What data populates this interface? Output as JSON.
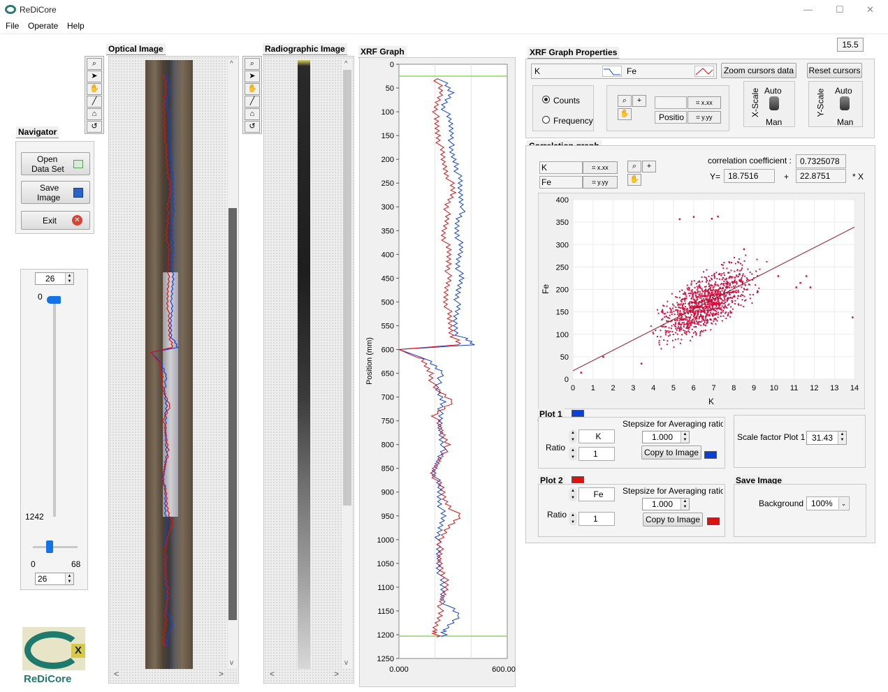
{
  "window": {
    "title": "ReDiCore",
    "minimize": "—",
    "maximize": "☐",
    "close": "✕"
  },
  "menu": [
    "File",
    "Operate",
    "Help"
  ],
  "version": "15.5",
  "navigator": {
    "label": "Navigator",
    "open_label_1": "Open",
    "open_label_2": "Data Set",
    "save_label_1": "Save",
    "save_label_2": "Image",
    "exit_label": "Exit"
  },
  "slider": {
    "top_value": "26",
    "min": "0",
    "max": "1242",
    "h_min": "0",
    "h_max": "68",
    "bottom_value": "26"
  },
  "optical": {
    "label": "Optical Image",
    "scroll_left": "<",
    "scroll_right": ">",
    "scroll_up": "^",
    "scroll_down": "v"
  },
  "radiographic": {
    "label": "Radiographic Image",
    "scroll_left": "<",
    "scroll_right": ">",
    "scroll_up": "^",
    "scroll_down": "v"
  },
  "xrf": {
    "label": "XRF Graph",
    "ylabel": "Position (mm)",
    "yticks": [
      "0",
      "50",
      "100",
      "150",
      "200",
      "250",
      "300",
      "350",
      "400",
      "450",
      "500",
      "550",
      "600",
      "650",
      "700",
      "750",
      "800",
      "850",
      "900",
      "950",
      "1000",
      "1050",
      "1100",
      "1150",
      "1200",
      "1250"
    ],
    "xmin_label": "0.000",
    "xmax_label": "600.00"
  },
  "props": {
    "label": "XRF Graph Properties",
    "series1": "K",
    "series2": "Fe",
    "zoom_btn": "Zoom cursors data",
    "reset_btn": "Reset cursors",
    "counts": "Counts",
    "frequency": "Frequency",
    "position": "Positio",
    "xscale": "X-Scale",
    "yscale": "Y-Scale",
    "auto": "Auto",
    "man": "Man"
  },
  "corr": {
    "label": "Correlation graph",
    "x_series": "K",
    "y_series": "Fe",
    "coef_label": "correlation coefficient :",
    "coef_value": "0.7325078",
    "y_eq": "Y=",
    "intercept": "18.7516",
    "plus": "+",
    "slope": "22.8751",
    "times_x": "* X",
    "xlabel": "K",
    "ylabel": "Fe",
    "xticks": [
      "0",
      "1",
      "2",
      "3",
      "4",
      "5",
      "6",
      "7",
      "8",
      "9",
      "10",
      "11",
      "12",
      "13",
      "14"
    ],
    "yticks": [
      "0",
      "50",
      "100",
      "150",
      "200",
      "250",
      "300",
      "350",
      "400"
    ]
  },
  "plot1": {
    "label": "Plot 1",
    "ratio": "Ratio",
    "element": "K",
    "divisor": "1",
    "stepsize_label": "Stepsize for Averaging ratio",
    "stepsize": "1.000",
    "copy_btn": "Copy to Image",
    "color": "#0a3fd8"
  },
  "scale": {
    "label": "Scale factor Plot 1",
    "value": "31.43"
  },
  "plot2": {
    "label": "Plot 2",
    "ratio": "Ratio",
    "element": "Fe",
    "divisor": "1",
    "stepsize_label": "Stepsize for Averaging ratio",
    "stepsize": "1.000",
    "copy_btn": "Copy to Image",
    "color": "#e01010"
  },
  "save_image": {
    "label": "Save Image",
    "background_label": "Background",
    "background_value": "100%"
  },
  "logo": {
    "text": "ReDiCore"
  },
  "chart_data": [
    {
      "type": "line",
      "title": "",
      "xlabel": "",
      "ylabel": "Position (mm)",
      "xlim": [
        0,
        600
      ],
      "ylim": [
        0,
        1250
      ],
      "orientation": "vertical-depth",
      "series": [
        {
          "name": "K",
          "color": "#1040e0",
          "depth": [
            30,
            60,
            90,
            120,
            150,
            180,
            210,
            240,
            270,
            300,
            330,
            360,
            390,
            420,
            450,
            480,
            510,
            540,
            570,
            590,
            600,
            620,
            650,
            680,
            710,
            740,
            770,
            800,
            830,
            860,
            890,
            920,
            950,
            980,
            1010,
            1040,
            1070,
            1100,
            1130,
            1160,
            1190,
            1205
          ],
          "values": [
            230,
            290,
            250,
            280,
            300,
            280,
            320,
            330,
            340,
            360,
            320,
            330,
            340,
            330,
            340,
            330,
            320,
            310,
            330,
            420,
            0,
            150,
            250,
            200,
            250,
            220,
            230,
            250,
            220,
            200,
            220,
            230,
            240,
            230,
            210,
            220,
            230,
            240,
            250,
            330,
            260,
            240
          ]
        },
        {
          "name": "Fe",
          "color": "#e01010",
          "depth": [
            30,
            60,
            90,
            120,
            150,
            180,
            210,
            240,
            270,
            300,
            330,
            360,
            390,
            420,
            450,
            480,
            510,
            540,
            570,
            590,
            600,
            620,
            650,
            680,
            710,
            740,
            770,
            800,
            830,
            860,
            890,
            920,
            950,
            980,
            1010,
            1040,
            1070,
            1100,
            1130,
            1160,
            1190,
            1205
          ],
          "values": [
            210,
            230,
            210,
            200,
            220,
            230,
            250,
            280,
            300,
            270,
            260,
            250,
            270,
            280,
            270,
            260,
            270,
            280,
            300,
            330,
            0,
            120,
            180,
            190,
            300,
            200,
            230,
            280,
            220,
            190,
            230,
            260,
            330,
            260,
            230,
            220,
            250,
            260,
            240,
            220,
            200,
            210
          ]
        }
      ]
    },
    {
      "type": "scatter",
      "title": "",
      "xlabel": "K",
      "ylabel": "Fe",
      "xlim": [
        0,
        14
      ],
      "ylim": [
        0,
        400
      ],
      "fit": {
        "intercept": 18.7516,
        "slope": 22.8751,
        "r": 0.7325078
      },
      "outliers": {
        "x": [
          5.3,
          6,
          6.9,
          7.2,
          10.2,
          11.1,
          11.3,
          11.6,
          11.8,
          13.9,
          0.4,
          1.5,
          3.4,
          8.5
        ],
        "y": [
          357,
          362,
          358,
          363,
          230,
          205,
          215,
          230,
          205,
          138,
          15,
          50,
          35,
          290
        ]
      }
    }
  ]
}
